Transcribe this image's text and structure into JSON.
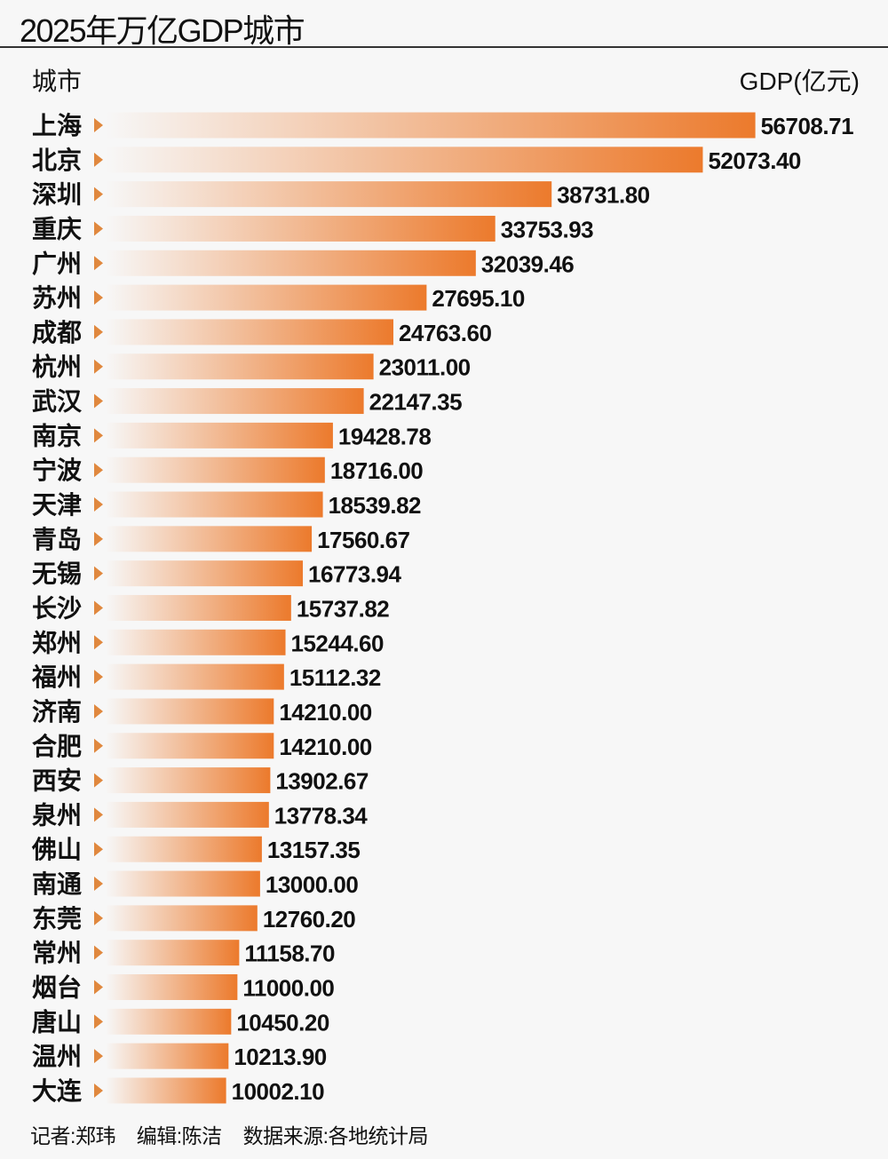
{
  "chart_data": {
    "type": "bar",
    "orientation": "horizontal",
    "title": "2025年万亿GDP城市",
    "category_header": "城市",
    "value_header": "GDP(亿元)",
    "bar_color": "#ec7a2c",
    "marker_color": "#e0883e",
    "categories": [
      "上海",
      "北京",
      "深圳",
      "重庆",
      "广州",
      "苏州",
      "成都",
      "杭州",
      "武汉",
      "南京",
      "宁波",
      "天津",
      "青岛",
      "无锡",
      "长沙",
      "郑州",
      "福州",
      "济南",
      "合肥",
      "西安",
      "泉州",
      "佛山",
      "南通",
      "东莞",
      "常州",
      "烟台",
      "唐山",
      "温州",
      "大连"
    ],
    "values": [
      56708.71,
      52073.4,
      38731.8,
      33753.93,
      32039.46,
      27695.1,
      24763.6,
      23011.0,
      22147.35,
      19428.78,
      18716.0,
      18539.82,
      17560.67,
      16773.94,
      15737.82,
      15244.6,
      15112.32,
      14210.0,
      14210.0,
      13902.67,
      13778.34,
      13157.35,
      13000.0,
      12760.2,
      11158.7,
      11000.0,
      10450.2,
      10213.9,
      10002.1
    ],
    "value_labels": [
      "56708.71",
      "52073.40",
      "38731.80",
      "33753.93",
      "32039.46",
      "27695.10",
      "24763.60",
      "23011.00",
      "22147.35",
      "19428.78",
      "18716.00",
      "18539.82",
      "17560.67",
      "16773.94",
      "15737.82",
      "15244.60",
      "15112.32",
      "14210.00",
      "14210.00",
      "13902.67",
      "13778.34",
      "13157.35",
      "13000.00",
      "12760.20",
      "11158.70",
      "11000.00",
      "10450.20",
      "10213.90",
      "10002.10"
    ]
  },
  "footer": {
    "reporter": "记者:郑玮",
    "editor": "编辑:陈洁",
    "source": "数据来源:各地统计局"
  }
}
